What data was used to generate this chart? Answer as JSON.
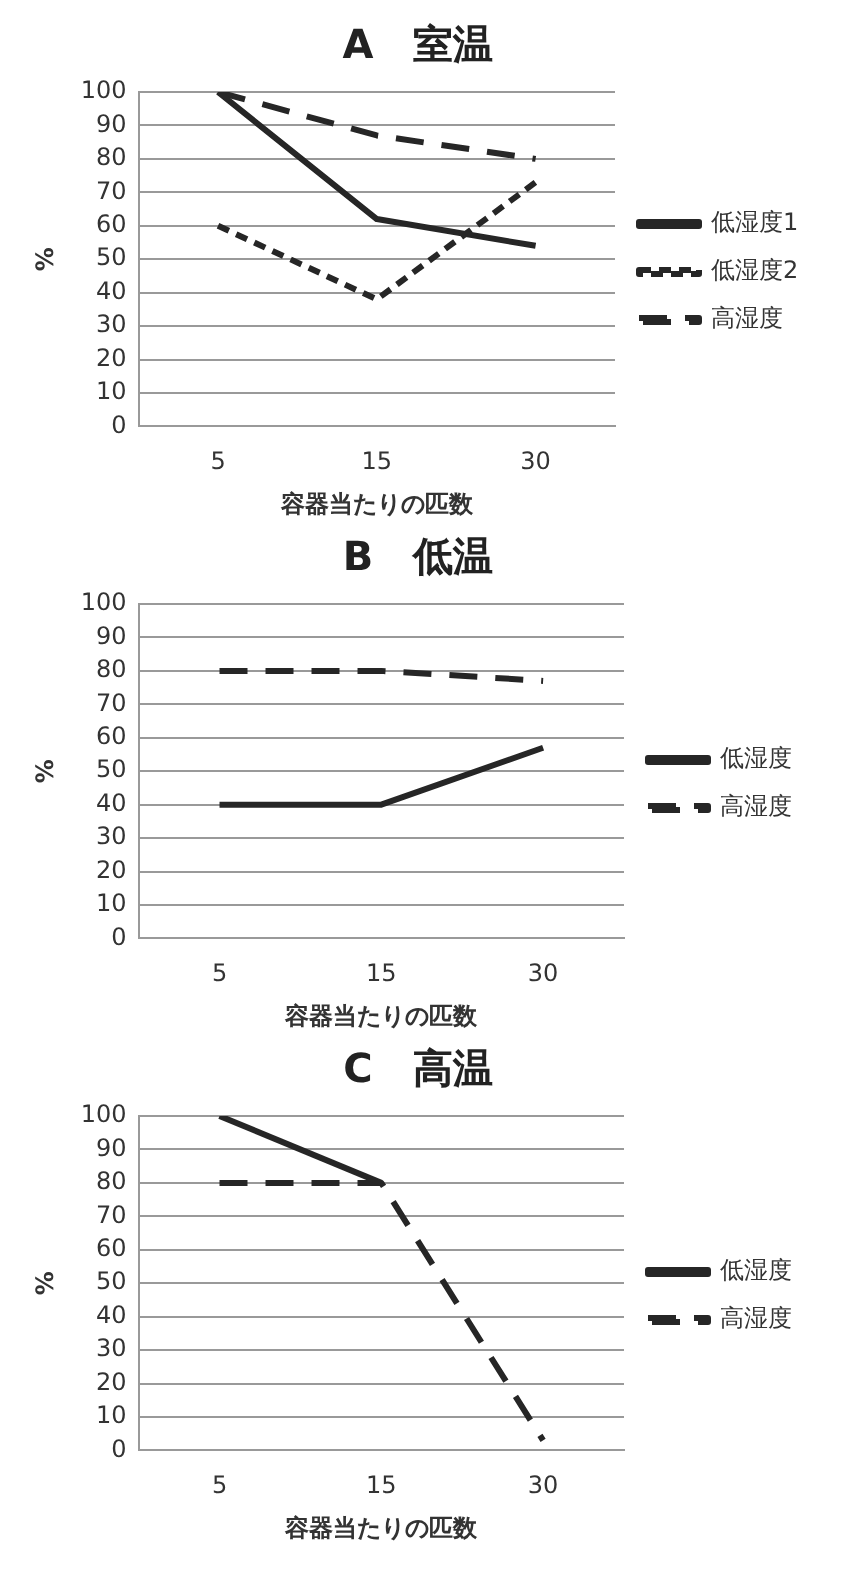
{
  "chart_data": [
    {
      "type": "line",
      "title": "A　室温",
      "xlabel": "容器当たりの匹数",
      "ylabel": "%",
      "categories": [
        "5",
        "15",
        "30"
      ],
      "series": [
        {
          "name": "低湿度1",
          "color": "#262626",
          "line_style": "solid",
          "values": [
            100,
            62,
            54
          ]
        },
        {
          "name": "低湿度2",
          "color": "#262626",
          "line_style": "dotted",
          "values": [
            60,
            38,
            73
          ]
        },
        {
          "name": "高湿度",
          "color": "#262626",
          "line_style": "dashed",
          "values": [
            100,
            87,
            80
          ]
        }
      ],
      "ylim": [
        0,
        100
      ],
      "yticks": [
        0,
        10,
        20,
        30,
        40,
        50,
        60,
        70,
        80,
        90,
        100
      ],
      "grid": "y",
      "legend": "right",
      "marker": "none"
    },
    {
      "type": "line",
      "title": "B　低温",
      "xlabel": "容器当たりの匹数",
      "ylabel": "%",
      "categories": [
        "5",
        "15",
        "30"
      ],
      "series": [
        {
          "name": "低湿度",
          "color": "#262626",
          "line_style": "solid",
          "values": [
            40,
            40,
            57
          ]
        },
        {
          "name": "高湿度",
          "color": "#262626",
          "line_style": "dashed",
          "values": [
            80,
            80,
            77
          ]
        }
      ],
      "ylim": [
        0,
        100
      ],
      "yticks": [
        0,
        10,
        20,
        30,
        40,
        50,
        60,
        70,
        80,
        90,
        100
      ],
      "grid": "y",
      "legend": "right",
      "marker": "none"
    },
    {
      "type": "line",
      "title": "C　高温",
      "xlabel": "容器当たりの匹数",
      "ylabel": "%",
      "categories": [
        "5",
        "15",
        "30"
      ],
      "series": [
        {
          "name": "低湿度",
          "color": "#262626",
          "line_style": "solid",
          "values": [
            100,
            80,
            null
          ]
        },
        {
          "name": "高湿度",
          "color": "#262626",
          "line_style": "dashed",
          "values": [
            80,
            80,
            3
          ]
        }
      ],
      "ylim": [
        0,
        100
      ],
      "yticks": [
        0,
        10,
        20,
        30,
        40,
        50,
        60,
        70,
        80,
        90,
        100
      ],
      "grid": "y",
      "legend": "right",
      "marker": "none"
    }
  ]
}
